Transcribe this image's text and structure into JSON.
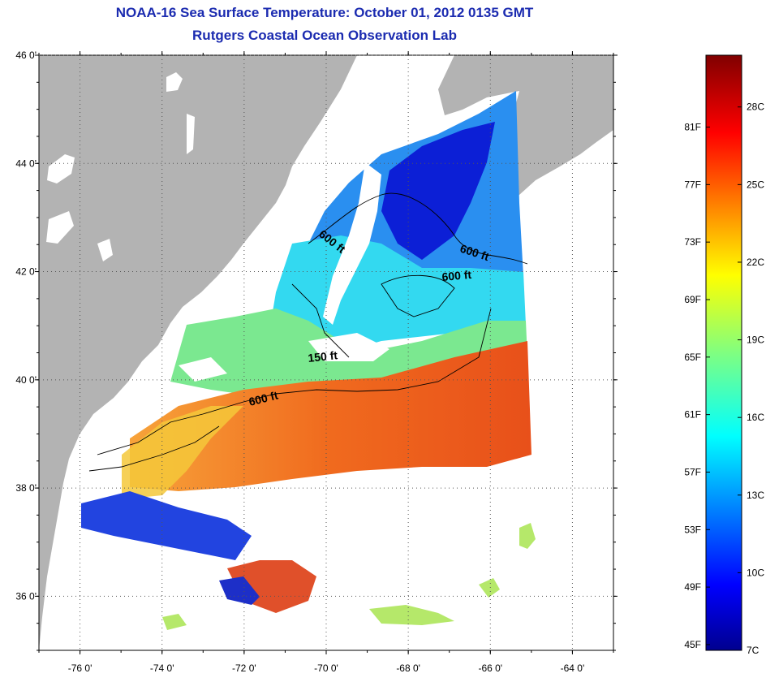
{
  "title": {
    "line1": "NOAA-16 Sea Surface Temperature:  October 01, 2012 0135 GMT",
    "line2": "Rutgers Coastal Ocean Observation Lab"
  },
  "axes": {
    "lat_ticks": [
      {
        "value": 46,
        "label": "46 0'"
      },
      {
        "value": 44,
        "label": "44 0'"
      },
      {
        "value": 42,
        "label": "42 0'"
      },
      {
        "value": 40,
        "label": "40 0'"
      },
      {
        "value": 38,
        "label": "38 0'"
      },
      {
        "value": 36,
        "label": "36 0'"
      }
    ],
    "lon_ticks": [
      {
        "value": -76,
        "label": "-76 0'"
      },
      {
        "value": -74,
        "label": "-74 0'"
      },
      {
        "value": -72,
        "label": "-72 0'"
      },
      {
        "value": -70,
        "label": "-70 0'"
      },
      {
        "value": -68,
        "label": "-68 0'"
      },
      {
        "value": -66,
        "label": "-66 0'"
      },
      {
        "value": -64,
        "label": "-64 0'"
      }
    ],
    "lat_range": [
      35,
      46
    ],
    "lon_range": [
      -77,
      -63
    ],
    "grid": "dotted"
  },
  "contour_labels": [
    "600 ft",
    "600 ft",
    "600 ft",
    "150 ft",
    "600 ft"
  ],
  "colorbar": {
    "fahrenheit_labels": [
      "81F",
      "77F",
      "73F",
      "69F",
      "65F",
      "61F",
      "57F",
      "53F",
      "49F",
      "45F"
    ],
    "celsius_labels": [
      "28C",
      "25C",
      "22C",
      "19C",
      "16C",
      "13C",
      "10C",
      "7C"
    ],
    "range_c": [
      7,
      30
    ],
    "colormap": "jet"
  },
  "colors": {
    "title": "#1b2bb0",
    "land": "#b3b3b3",
    "no_data": "#ffffff"
  }
}
